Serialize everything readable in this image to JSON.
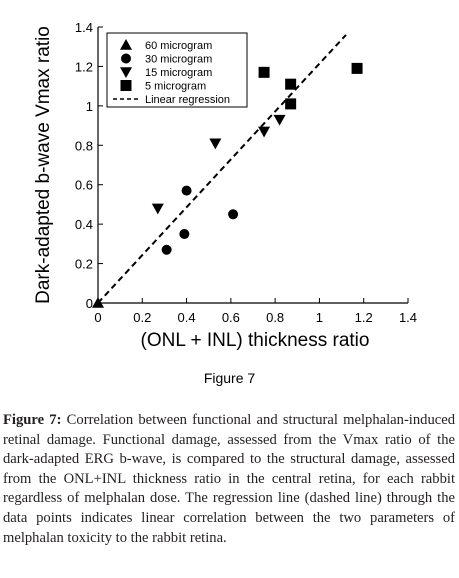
{
  "figure": {
    "label": "Figure 7"
  },
  "caption": {
    "head": "Figure 7:",
    "body": "Correlation between functional and structural melphalan-induced retinal damage. Functional damage, assessed from the Vmax ratio of the dark-adapted ERG b-wave, is compared to the structural damage, assessed from the ONL+INL thickness ratio in the central retina, for each rabbit regardless of melphalan dose. The regression line (dashed line) through the data points indicates linear correlation between the two parameters of melphalan toxicity to the rabbit retina."
  },
  "chart_data": {
    "type": "scatter",
    "xlabel": "(ONL + INL) thickness ratio",
    "ylabel": "Dark-adapted b-wave Vmax ratio",
    "xlim": [
      0,
      1.4
    ],
    "ylim": [
      0,
      1.4
    ],
    "xticks": [
      "0",
      "0.2",
      "0.4",
      "0.6",
      "0.8",
      "1",
      "1.2",
      "1.4"
    ],
    "yticks": [
      "0",
      "0.2",
      "0.4",
      "0.6",
      "0.8",
      "1",
      "1.2",
      "1.4"
    ],
    "grid": false,
    "legend_position": "top-left",
    "series": [
      {
        "name": "60 microgram",
        "marker": "triangle-up",
        "points": [
          [
            0.0,
            0.0
          ]
        ]
      },
      {
        "name": "30 microgram",
        "marker": "circle",
        "points": [
          [
            0.31,
            0.27
          ],
          [
            0.39,
            0.35
          ],
          [
            0.4,
            0.57
          ],
          [
            0.61,
            0.45
          ]
        ]
      },
      {
        "name": "15 microgram",
        "marker": "triangle-down",
        "points": [
          [
            0.27,
            0.48
          ],
          [
            0.53,
            0.81
          ],
          [
            0.75,
            0.87
          ],
          [
            0.82,
            0.93
          ]
        ]
      },
      {
        "name": "5 microgram",
        "marker": "square",
        "points": [
          [
            0.75,
            1.17
          ],
          [
            0.87,
            1.11
          ],
          [
            0.87,
            1.01
          ],
          [
            1.17,
            1.19
          ]
        ]
      }
    ],
    "regression": {
      "name": "Linear regression",
      "style": "dashed",
      "points": [
        [
          0.0,
          0.0
        ],
        [
          1.12,
          1.36
        ]
      ]
    }
  }
}
